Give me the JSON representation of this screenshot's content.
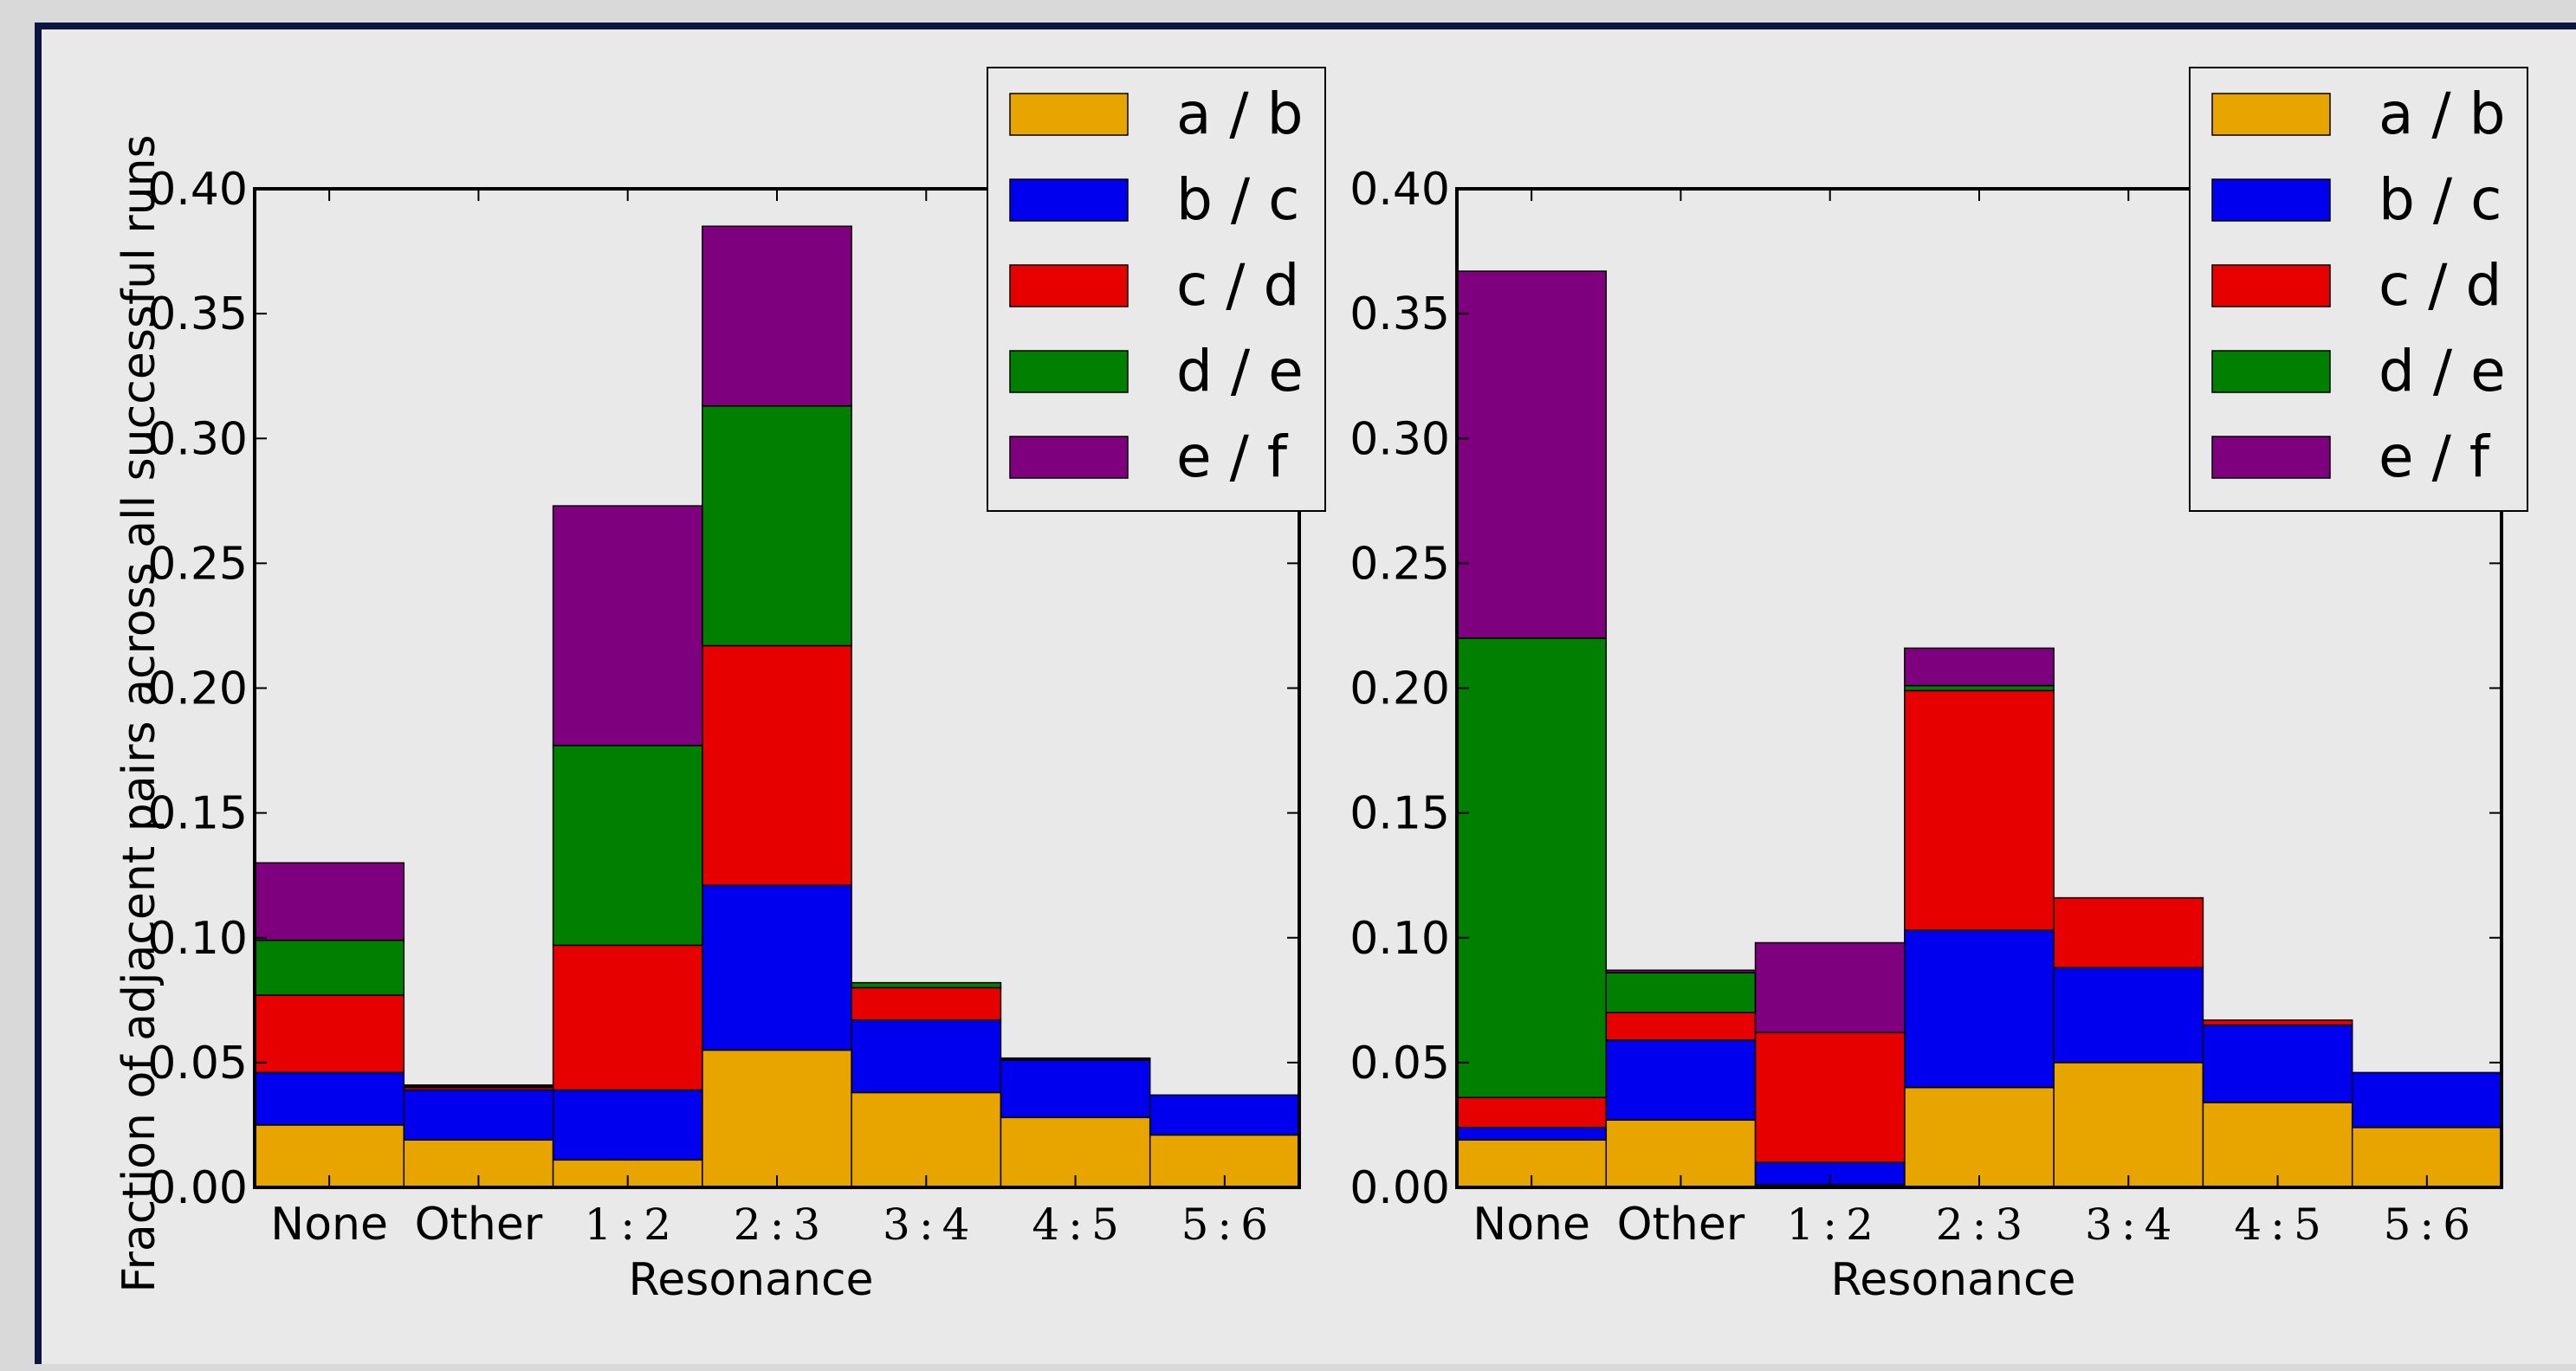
{
  "chart_data": [
    {
      "type": "bar",
      "stacked": true,
      "categories": [
        "None",
        "Other",
        "1:2",
        "2:3",
        "3:4",
        "4:5",
        "5:6"
      ],
      "xlabel": "Resonance",
      "ylabel": "Fraction of adjacent pairs across all successful runs",
      "ylim": [
        0,
        0.4
      ],
      "yticks": [
        "0.00",
        "0.05",
        "0.10",
        "0.15",
        "0.20",
        "0.25",
        "0.30",
        "0.35",
        "0.40"
      ],
      "legend_position": "top-right",
      "series": [
        {
          "name": "a / b",
          "color": "#e8a500",
          "values": [
            0.025,
            0.019,
            0.011,
            0.055,
            0.038,
            0.028,
            0.021
          ]
        },
        {
          "name": "b / c",
          "color": "#0000ee",
          "values": [
            0.021,
            0.02,
            0.028,
            0.066,
            0.029,
            0.023,
            0.016
          ]
        },
        {
          "name": "c / d",
          "color": "#e60000",
          "values": [
            0.031,
            0.001,
            0.058,
            0.096,
            0.013,
            0.0005,
            0.0
          ]
        },
        {
          "name": "d / e",
          "color": "#007f00",
          "values": [
            0.022,
            0.0005,
            0.08,
            0.096,
            0.002,
            0.0003,
            0.0
          ]
        },
        {
          "name": "e / f",
          "color": "#7f007f",
          "values": [
            0.031,
            0.0005,
            0.096,
            0.072,
            0.0,
            0.0,
            0.0
          ]
        }
      ]
    },
    {
      "type": "bar",
      "stacked": true,
      "categories": [
        "None",
        "Other",
        "1:2",
        "2:3",
        "3:4",
        "4:5",
        "5:6"
      ],
      "xlabel": "Resonance",
      "ylabel": "",
      "ylim": [
        0,
        0.4
      ],
      "yticks": [
        "0.00",
        "0.05",
        "0.10",
        "0.15",
        "0.20",
        "0.25",
        "0.30",
        "0.35",
        "0.40"
      ],
      "legend_position": "top-right",
      "series": [
        {
          "name": "a / b",
          "color": "#e8a500",
          "values": [
            0.019,
            0.027,
            0.001,
            0.04,
            0.05,
            0.034,
            0.024
          ]
        },
        {
          "name": "b / c",
          "color": "#0000ee",
          "values": [
            0.005,
            0.032,
            0.009,
            0.063,
            0.038,
            0.031,
            0.022
          ]
        },
        {
          "name": "c / d",
          "color": "#e60000",
          "values": [
            0.012,
            0.011,
            0.052,
            0.096,
            0.028,
            0.002,
            0.0
          ]
        },
        {
          "name": "d / e",
          "color": "#007f00",
          "values": [
            0.184,
            0.016,
            0.0,
            0.002,
            0.0,
            0.0,
            0.0
          ]
        },
        {
          "name": "e / f",
          "color": "#7f007f",
          "values": [
            0.147,
            0.001,
            0.036,
            0.015,
            0.0,
            0.0,
            0.0
          ]
        }
      ]
    }
  ]
}
